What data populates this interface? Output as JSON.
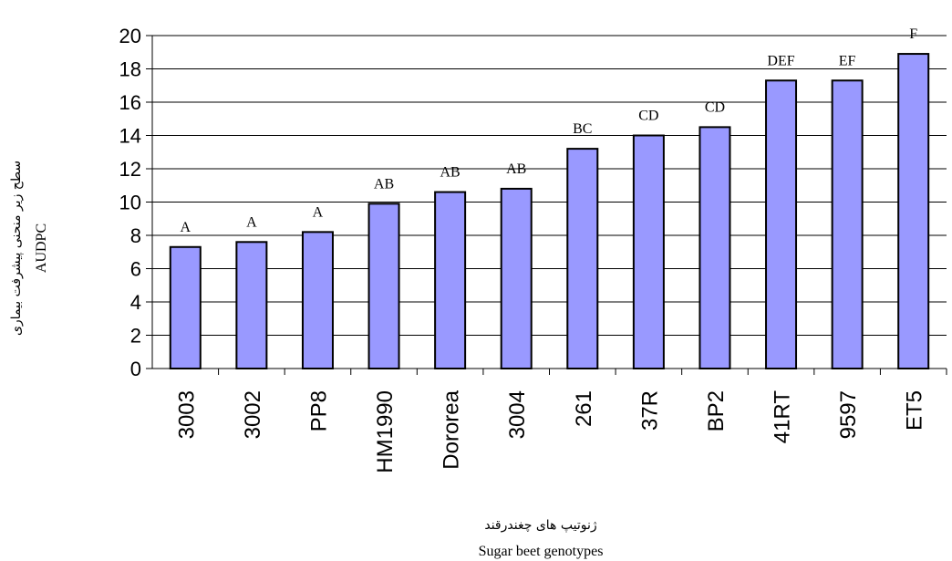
{
  "chart_data": {
    "type": "bar",
    "categories": [
      "3003",
      "3002",
      "PP8",
      "HM1990",
      "Dororea",
      "3004",
      "261",
      "37R",
      "BP2",
      "41RT",
      "9597",
      "ET5"
    ],
    "values": [
      7.3,
      7.6,
      8.2,
      9.9,
      10.6,
      10.8,
      13.2,
      14.0,
      14.5,
      17.3,
      17.3,
      18.9
    ],
    "significance_letters": [
      "A",
      "A",
      "A",
      "AB",
      "AB",
      "AB",
      "BC",
      "CD",
      "CD",
      "DEF",
      "EF",
      "F"
    ],
    "ylim": [
      0,
      20
    ],
    "yticks": [
      0,
      2,
      4,
      6,
      8,
      10,
      12,
      14,
      16,
      18,
      20
    ],
    "ylabel_fa": "سطح زیر منحنی پیشرفت بیماری",
    "ylabel": "AUDPC",
    "xlabel_fa": "ژنوتیپ های چغندرقند",
    "xlabel": "Sugar beet genotypes",
    "grid": true,
    "bar_color": "#9999ff"
  }
}
